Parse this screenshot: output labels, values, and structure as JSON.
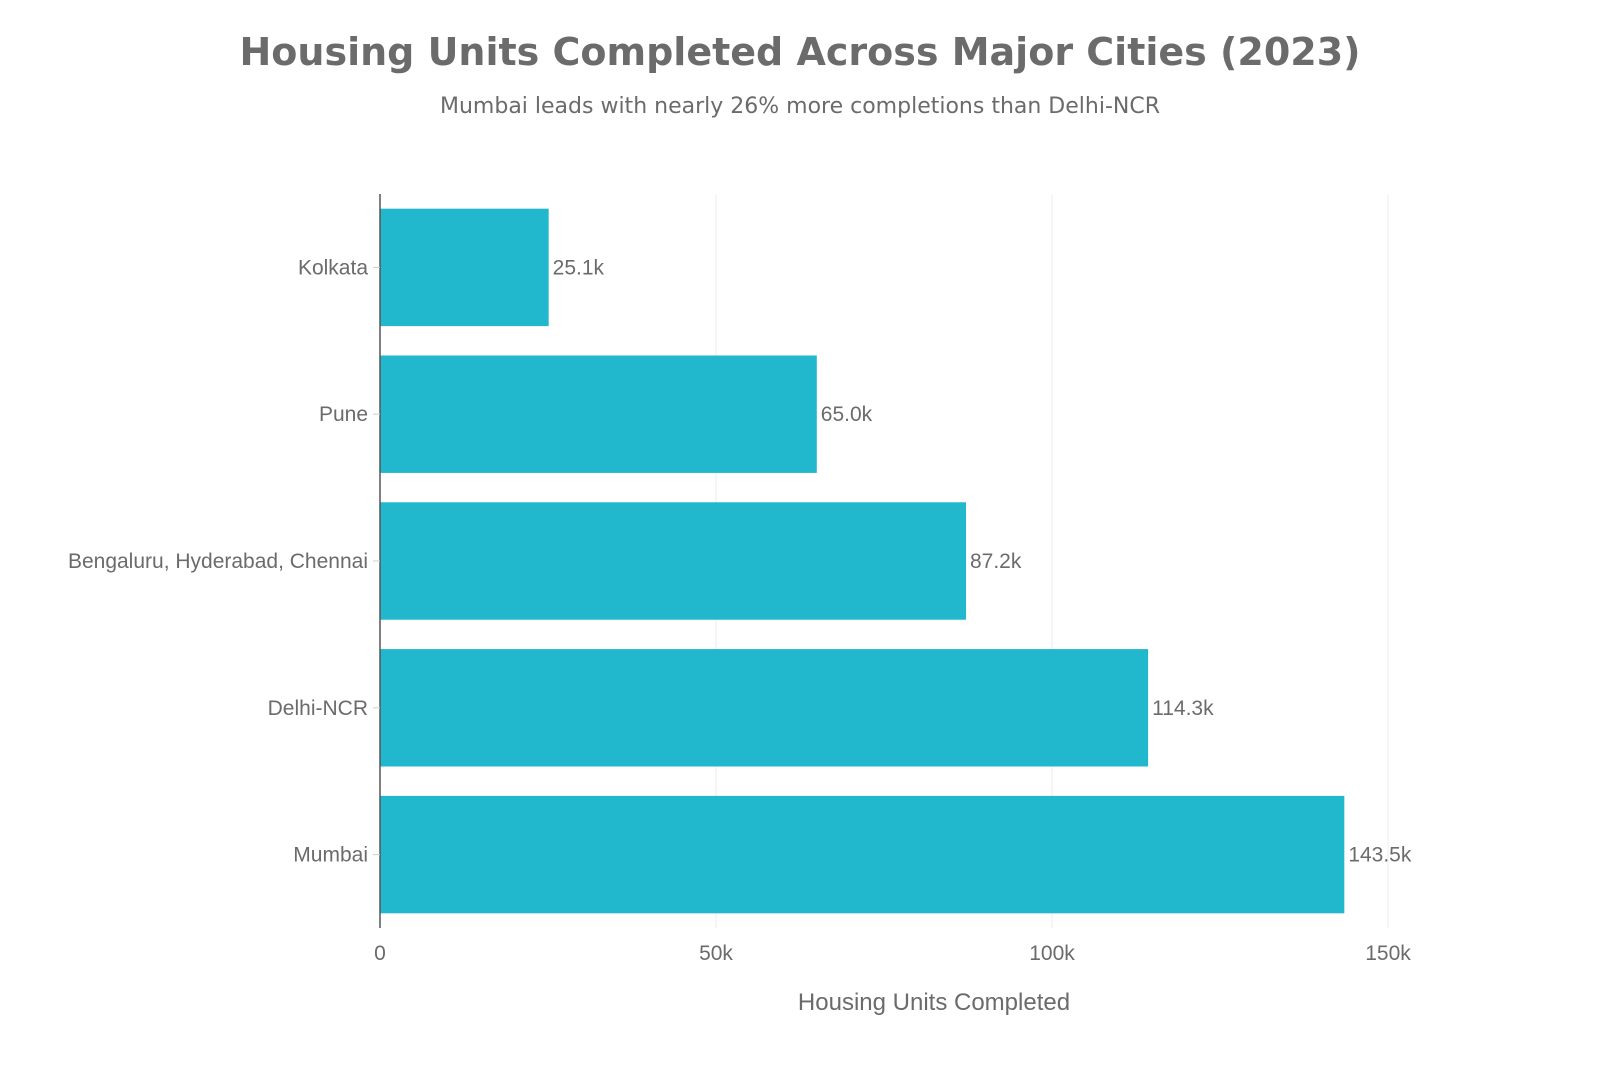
{
  "chart_data": {
    "type": "bar",
    "orientation": "horizontal",
    "title": "Housing Units Completed Across Major Cities (2023)",
    "subtitle": "Mumbai leads with nearly 26% more completions than Delhi-NCR",
    "xlabel": "Housing Units Completed",
    "ylabel": "",
    "categories": [
      "Kolkata",
      "Pune",
      "Bengaluru, Hyderabad, Chennai",
      "Delhi-NCR",
      "Mumbai"
    ],
    "values": [
      25100,
      65000,
      87200,
      114300,
      143500
    ],
    "value_labels": [
      "25.1k",
      "65.0k",
      "87.2k",
      "114.3k",
      "143.5k"
    ],
    "xlim": [
      0,
      150000
    ],
    "xticks": [
      0,
      50000,
      100000,
      150000
    ],
    "xtick_labels": [
      "0",
      "50k",
      "100k",
      "150k"
    ],
    "grid": true,
    "bar_color": "#21b7cc"
  }
}
